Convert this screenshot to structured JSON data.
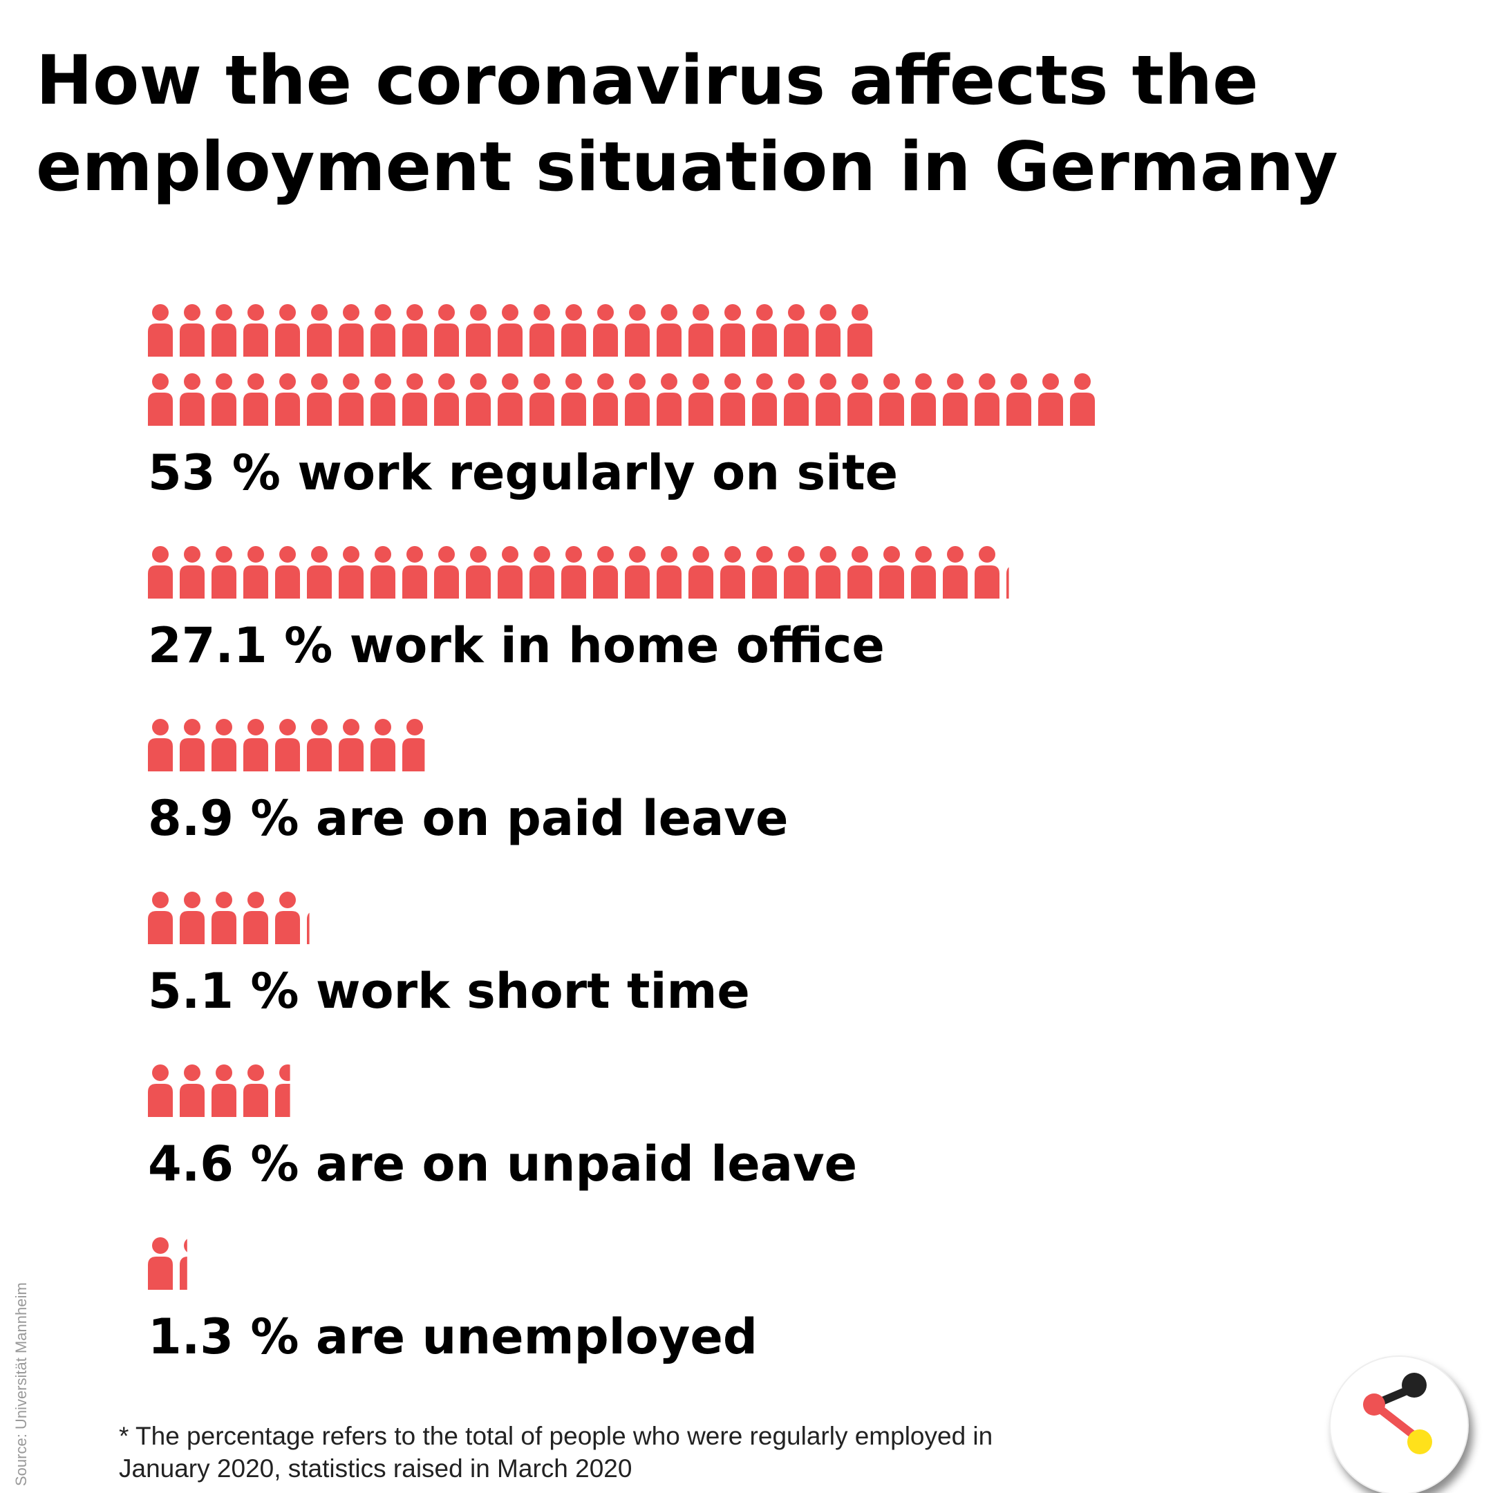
{
  "chart_data": {
    "type": "pictogram",
    "title": [
      "How the coronavirus affects the",
      "employment situation in Germany"
    ],
    "categories": [
      "work regularly on site",
      "work in home office",
      "are on paid leave",
      "work short time",
      "are on unpaid leave",
      "are unemployed"
    ],
    "values": [
      53,
      27.1,
      8.9,
      5.1,
      4.6,
      1.3
    ],
    "value_labels": [
      "53 %",
      "27.1 %",
      "8.9 %",
      "5.1 %",
      "4.6 %",
      "1.3 %"
    ],
    "color": "#ee5253",
    "footnote": [
      "* The percentage refers to the total of people who were regularly employed in",
      "January 2020, statistics raised in March 2020"
    ],
    "source": "Source: Universität Mannheim"
  }
}
